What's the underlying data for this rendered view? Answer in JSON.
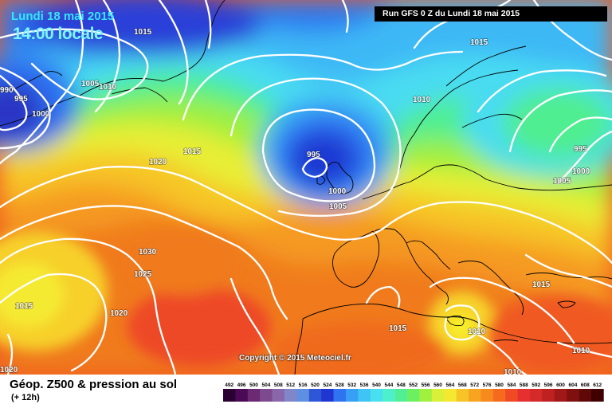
{
  "header": {
    "date_title": "Lundi 18 mai 2015",
    "time_title": "14:00 locale",
    "run_info": "Run GFS 0 Z du Lundi 18 mai 2015"
  },
  "footer": {
    "title": "Géop. Z500 & pression au sol",
    "subtitle": "(+ 12h)",
    "copyright": "Copyright © 2015 Meteociel.fr"
  },
  "legend": {
    "values": [
      "492",
      "496",
      "500",
      "504",
      "508",
      "512",
      "516",
      "520",
      "524",
      "528",
      "532",
      "536",
      "540",
      "544",
      "548",
      "552",
      "556",
      "560",
      "564",
      "568",
      "572",
      "576",
      "580",
      "584",
      "588",
      "592",
      "596",
      "600",
      "604",
      "608",
      "612"
    ],
    "colors": [
      "#2a0033",
      "#4b0a55",
      "#6b2a73",
      "#7d4a90",
      "#8a67ab",
      "#7f87c8",
      "#5f8fe0",
      "#2e57d8",
      "#1f36d0",
      "#2f73f0",
      "#37a0f5",
      "#3fc4f5",
      "#48e0f0",
      "#4ef0cc",
      "#52ee94",
      "#6df060",
      "#a0f040",
      "#d8f038",
      "#f5e830",
      "#f7c428",
      "#f7a420",
      "#f78a1c",
      "#f56a1c",
      "#f04a24",
      "#e63030",
      "#d42a2a",
      "#bf2020",
      "#a01818",
      "#801010",
      "#600808",
      "#400000"
    ]
  },
  "isobars": [
    {
      "label": "1015",
      "value": 1015
    },
    {
      "label": "990",
      "value": 990
    },
    {
      "label": "995",
      "value": 995
    },
    {
      "label": "1000",
      "value": 1000
    },
    {
      "label": "1005",
      "value": 1005
    },
    {
      "label": "1010",
      "value": 1010
    },
    {
      "label": "1015",
      "value": 1015
    },
    {
      "label": "1010",
      "value": 1010
    },
    {
      "label": "995",
      "value": 995
    },
    {
      "label": "1000",
      "value": 1000
    },
    {
      "label": "1005",
      "value": 1005
    },
    {
      "label": "995",
      "value": 995
    },
    {
      "label": "1000",
      "value": 1000
    },
    {
      "label": "1005",
      "value": 1005
    },
    {
      "label": "1015",
      "value": 1015
    },
    {
      "label": "1020",
      "value": 1020
    },
    {
      "label": "1030",
      "value": 1030
    },
    {
      "label": "1025",
      "value": 1025
    },
    {
      "label": "1015",
      "value": 1015
    },
    {
      "label": "1020",
      "value": 1020
    },
    {
      "label": "1020",
      "value": 1020
    },
    {
      "label": "1015",
      "value": 1015
    },
    {
      "label": "1010",
      "value": 1010
    },
    {
      "label": "1015",
      "value": 1015
    },
    {
      "label": "1010",
      "value": 1010
    },
    {
      "label": "1010",
      "value": 1010
    }
  ]
}
